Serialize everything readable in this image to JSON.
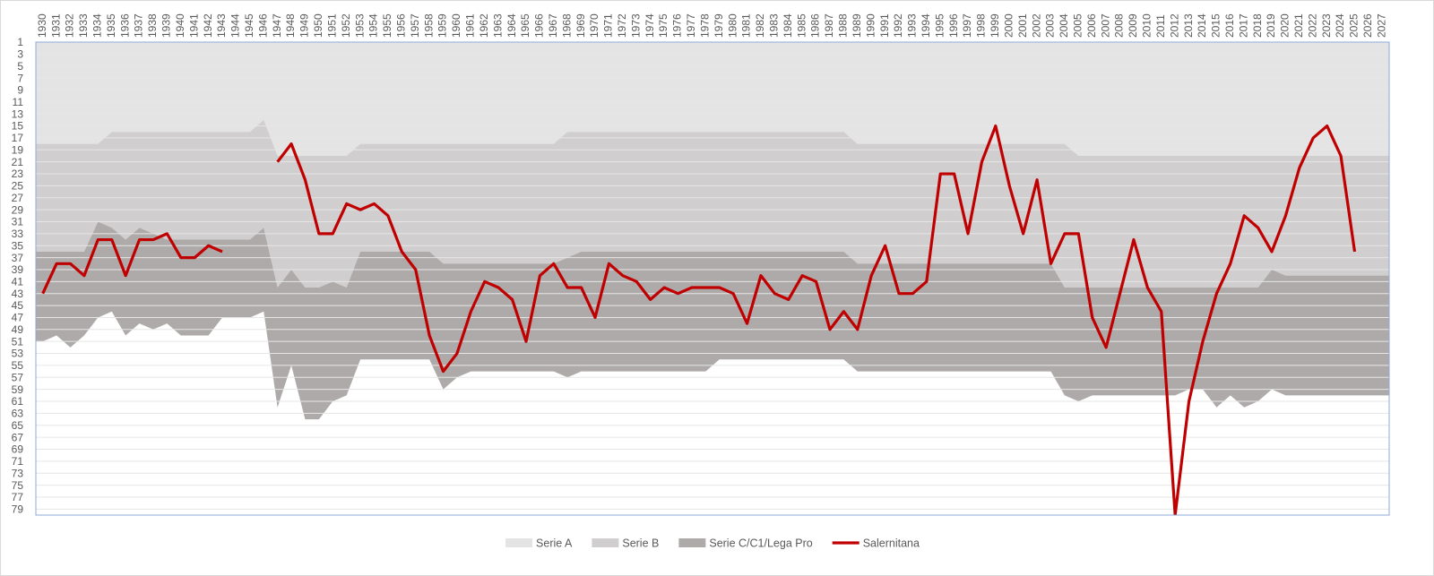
{
  "chart_data": {
    "type": "area",
    "stacked": true,
    "y_reversed": true,
    "grid": true,
    "legend": "bottom",
    "categories": [
      "1930",
      "1931",
      "1932",
      "1933",
      "1934",
      "1935",
      "1936",
      "1937",
      "1938",
      "1939",
      "1940",
      "1941",
      "1942",
      "1943",
      "1944",
      "1945",
      "1946",
      "1947",
      "1948",
      "1949",
      "1950",
      "1951",
      "1952",
      "1953",
      "1954",
      "1955",
      "1956",
      "1957",
      "1958",
      "1959",
      "1960",
      "1961",
      "1962",
      "1963",
      "1964",
      "1965",
      "1966",
      "1967",
      "1968",
      "1969",
      "1970",
      "1971",
      "1972",
      "1973",
      "1974",
      "1975",
      "1976",
      "1977",
      "1978",
      "1979",
      "1980",
      "1981",
      "1982",
      "1983",
      "1984",
      "1985",
      "1986",
      "1987",
      "1988",
      "1989",
      "1990",
      "1991",
      "1992",
      "1993",
      "1994",
      "1995",
      "1996",
      "1997",
      "1998",
      "1999",
      "2000",
      "2001",
      "2002",
      "2003",
      "2004",
      "2005",
      "2006",
      "2007",
      "2008",
      "2009",
      "2010",
      "2011",
      "2012",
      "2013",
      "2014",
      "2015",
      "2016",
      "2017",
      "2018",
      "2019",
      "2020",
      "2021",
      "2022",
      "2023",
      "2024",
      "2025",
      "2026",
      "2027"
    ],
    "series": [
      {
        "name": "Serie A",
        "type": "area",
        "color": "#e4e4e4",
        "values": [
          18,
          18,
          18,
          18,
          18,
          16,
          16,
          16,
          16,
          16,
          16,
          16,
          16,
          16,
          16,
          16,
          14,
          20,
          20,
          20,
          20,
          20,
          20,
          18,
          18,
          18,
          18,
          18,
          18,
          18,
          18,
          18,
          18,
          18,
          18,
          18,
          18,
          18,
          16,
          16,
          16,
          16,
          16,
          16,
          16,
          16,
          16,
          16,
          16,
          16,
          16,
          16,
          16,
          16,
          16,
          16,
          16,
          16,
          16,
          18,
          18,
          18,
          18,
          18,
          18,
          18,
          18,
          18,
          18,
          18,
          18,
          18,
          18,
          18,
          18,
          20,
          20,
          20,
          20,
          20,
          20,
          20,
          20,
          20,
          20,
          20,
          20,
          20,
          20,
          20,
          20,
          20,
          20,
          20,
          20,
          20,
          20,
          20
        ]
      },
      {
        "name": "Serie B",
        "type": "area",
        "color": "#d0cece",
        "values": [
          18,
          18,
          18,
          18,
          13,
          16,
          18,
          16,
          17,
          18,
          18,
          18,
          18,
          18,
          18,
          18,
          18,
          22,
          19,
          22,
          22,
          21,
          22,
          18,
          18,
          18,
          18,
          18,
          18,
          20,
          20,
          20,
          20,
          20,
          20,
          20,
          20,
          20,
          21,
          20,
          20,
          20,
          20,
          20,
          20,
          20,
          20,
          20,
          20,
          20,
          20,
          20,
          20,
          20,
          20,
          20,
          20,
          20,
          20,
          20,
          20,
          20,
          20,
          20,
          20,
          20,
          20,
          20,
          20,
          20,
          20,
          20,
          20,
          20,
          24,
          22,
          22,
          22,
          22,
          22,
          22,
          22,
          22,
          22,
          22,
          22,
          22,
          22,
          22,
          19,
          20,
          20,
          20,
          20,
          20,
          20,
          20,
          20
        ]
      },
      {
        "name": "Serie C/C1/Lega Pro",
        "type": "area",
        "color": "#aeaaaa",
        "values": [
          15,
          14,
          16,
          14,
          16,
          14,
          16,
          16,
          16,
          14,
          16,
          16,
          16,
          13,
          13,
          13,
          14,
          20,
          16,
          22,
          22,
          20,
          18,
          18,
          18,
          18,
          18,
          18,
          18,
          21,
          19,
          18,
          18,
          18,
          18,
          18,
          18,
          18,
          20,
          20,
          20,
          20,
          20,
          20,
          20,
          20,
          20,
          20,
          20,
          18,
          18,
          18,
          18,
          18,
          18,
          18,
          18,
          18,
          18,
          18,
          18,
          18,
          18,
          18,
          18,
          18,
          18,
          18,
          18,
          18,
          18,
          18,
          18,
          18,
          18,
          19,
          18,
          18,
          18,
          18,
          18,
          18,
          18,
          17,
          17,
          20,
          18,
          20,
          19,
          20,
          20,
          20,
          20,
          20,
          20,
          20,
          20,
          20
        ]
      },
      {
        "name": "Salernitana",
        "type": "line",
        "color": "#c00000",
        "values": [
          43,
          38,
          38,
          40,
          34,
          34,
          40,
          34,
          34,
          33,
          37,
          37,
          35,
          36,
          null,
          null,
          null,
          21,
          18,
          24,
          33,
          33,
          28,
          29,
          28,
          30,
          36,
          39,
          50,
          56,
          53,
          46,
          41,
          42,
          44,
          51,
          40,
          38,
          42,
          42,
          47,
          38,
          40,
          41,
          44,
          42,
          43,
          42,
          42,
          42,
          43,
          48,
          40,
          43,
          44,
          40,
          41,
          49,
          46,
          49,
          40,
          35,
          43,
          43,
          41,
          23,
          23,
          33,
          21,
          15,
          25,
          33,
          24,
          38,
          33,
          33,
          47,
          52,
          43,
          34,
          42,
          46,
          80,
          61,
          51,
          43,
          38,
          30,
          32,
          36,
          30,
          22,
          17,
          15,
          20,
          36,
          null,
          null
        ]
      }
    ],
    "ylim": [
      1,
      80
    ],
    "yticks": [
      1,
      3,
      5,
      7,
      9,
      11,
      13,
      15,
      17,
      19,
      21,
      23,
      25,
      27,
      29,
      31,
      33,
      35,
      37,
      39,
      41,
      43,
      45,
      47,
      49,
      51,
      53,
      55,
      57,
      59,
      61,
      63,
      65,
      67,
      69,
      71,
      73,
      75,
      77,
      79
    ]
  }
}
